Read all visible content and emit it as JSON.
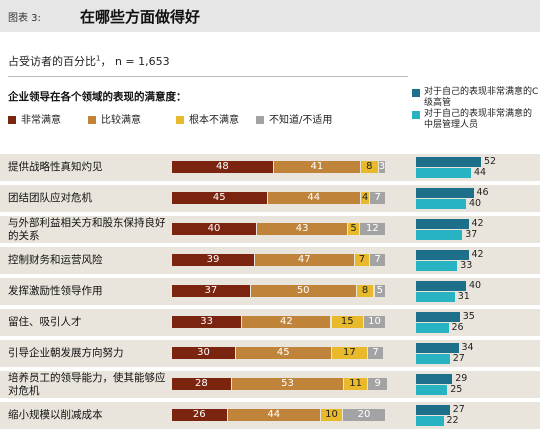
{
  "header": {
    "figure_label": "图表 3:",
    "title": "在哪些方面做得好"
  },
  "subtitle": {
    "text": "占受访者的百分比",
    "footnote": "1",
    "n": "，  n = 1,653"
  },
  "question_title": "企业领导在各个领域的表现的满意度：",
  "colors": {
    "very_satisfied": "#7b2410",
    "satisfied": "#c0833a",
    "not_satisfied": "#e8b92a",
    "dont_know": "#a3a3a3",
    "c_level": "#1e6f8a",
    "middle_mgmt": "#27b3c2",
    "row_bg": "#e9e5dc"
  },
  "legend_left": [
    {
      "label": "非常满意",
      "color_key": "very_satisfied"
    },
    {
      "label": "比较满意",
      "color_key": "satisfied"
    },
    {
      "label": "根本不满意",
      "color_key": "not_satisfied"
    },
    {
      "label": "不知道/不适用",
      "color_key": "dont_know"
    }
  ],
  "legend_right": [
    {
      "label": "对于自己的表现非常满意的C级高管",
      "color_key": "c_level"
    },
    {
      "label": "对于自己的表现非常满意的中层管理人员",
      "color_key": "middle_mgmt"
    }
  ],
  "chart_data": [
    {
      "type": "bar",
      "stacked": true,
      "orientation": "horizontal",
      "title": "企业领导在各个领域的表现的满意度：",
      "categories": [
        "提供战略性真知灼见",
        "团结团队应对危机",
        "与外部利益相关方和股东保持良好的关系",
        "控制财务和运营风险",
        "发挥激励性领导作用",
        "留住、吸引人才",
        "引导企业朝发展方向努力",
        "培养员工的领导能力，使其能够应对危机",
        "缩小规模以削减成本"
      ],
      "series": [
        {
          "name": "非常满意",
          "values": [
            48,
            45,
            40,
            39,
            37,
            33,
            30,
            28,
            26
          ]
        },
        {
          "name": "比较满意",
          "values": [
            41,
            44,
            43,
            47,
            50,
            42,
            45,
            53,
            44
          ]
        },
        {
          "name": "根本不满意",
          "values": [
            8,
            4,
            5,
            7,
            8,
            15,
            17,
            11,
            10
          ]
        },
        {
          "name": "不知道/不适用",
          "values": [
            3,
            7,
            12,
            7,
            5,
            10,
            7,
            9,
            20
          ]
        }
      ],
      "xlim": [
        0,
        100
      ]
    },
    {
      "type": "bar",
      "orientation": "horizontal",
      "categories": [
        "提供战略性真知灼见",
        "团结团队应对危机",
        "与外部利益相关方和股东保持良好的关系",
        "控制财务和运营风险",
        "发挥激励性领导作用",
        "留住、吸引人才",
        "引导企业朝发展方向努力",
        "培养员工的领导能力，使其能够应对危机",
        "缩小规模以削减成本"
      ],
      "series": [
        {
          "name": "对于自己的表现非常满意的C级高管",
          "values": [
            52,
            46,
            42,
            42,
            40,
            35,
            34,
            29,
            27
          ]
        },
        {
          "name": "对于自己的表现非常满意的中层管理人员",
          "values": [
            44,
            40,
            37,
            33,
            31,
            26,
            27,
            25,
            22
          ]
        }
      ]
    }
  ]
}
